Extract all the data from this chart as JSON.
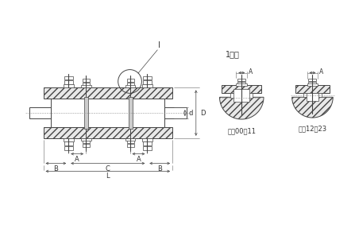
{
  "bg_color": "#ffffff",
  "line_color": "#444444",
  "label_color": "#333333",
  "label_magnify": "1放大",
  "label_spec1": "规格00～11",
  "label_spec2": "规格12～23",
  "figsize": [
    4.47,
    3.07
  ],
  "dpi": 100
}
